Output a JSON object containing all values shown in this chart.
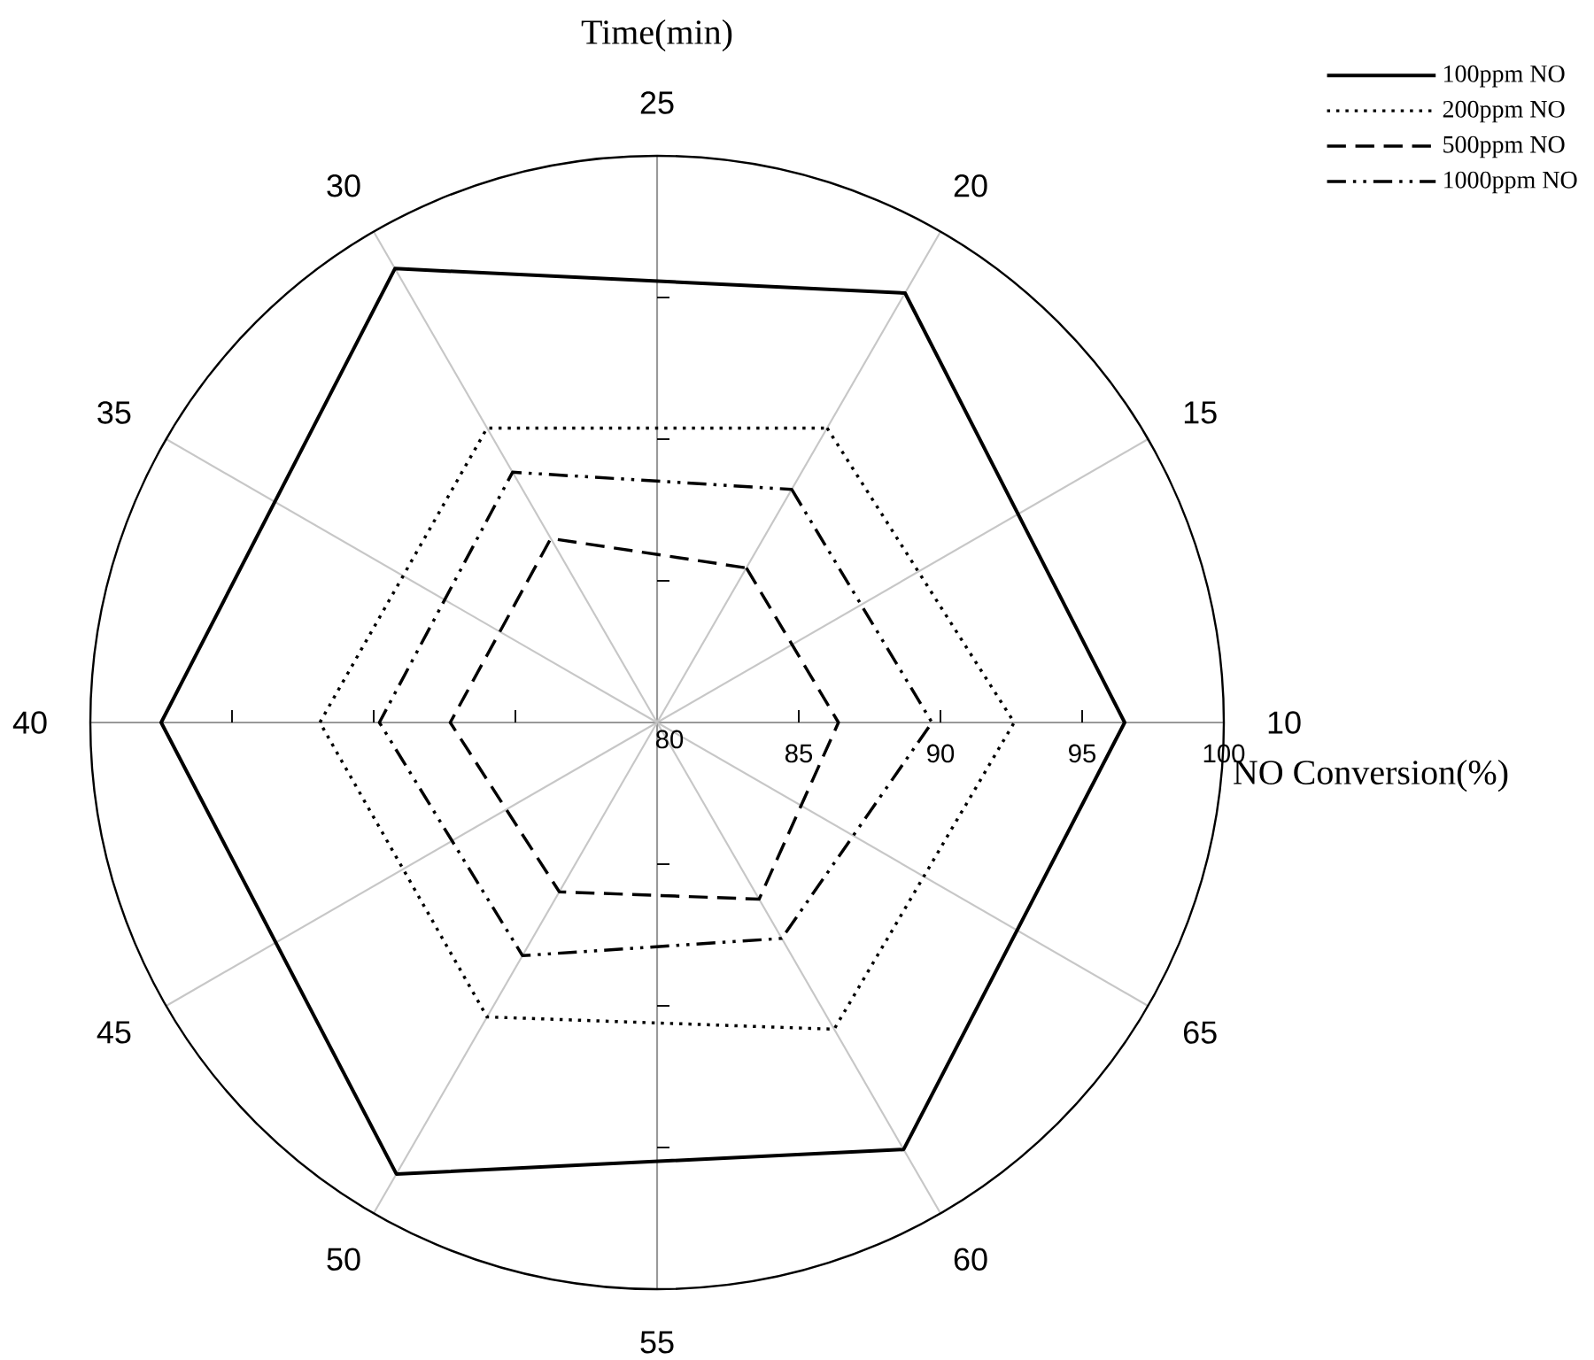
{
  "chart_data": {
    "type": "radar",
    "xlabel": "Time(min)",
    "ylabel": "NO Conversion(%)",
    "categories": [
      "25",
      "20",
      "15",
      "10",
      "65",
      "60",
      "55",
      "50",
      "45",
      "40",
      "35",
      "30"
    ],
    "series": [
      {
        "name": "100ppm NO",
        "color": "#000000",
        "line_style": "solid",
        "values": [
          null,
          97.5,
          null,
          96.5,
          null,
          97.4,
          null,
          98.4,
          null,
          97.5,
          null,
          98.5
        ]
      },
      {
        "name": "200ppm NO",
        "color": "#000000",
        "line_style": "dotted",
        "values": [
          null,
          92.0,
          null,
          92.6,
          null,
          92.5,
          null,
          92.0,
          null,
          91.9,
          null,
          92.0
        ]
      },
      {
        "name": "500ppm NO",
        "color": "#000000",
        "line_style": "dashed",
        "values": [
          null,
          86.3,
          null,
          86.4,
          null,
          87.2,
          null,
          86.9,
          null,
          87.3,
          null,
          87.5
        ]
      },
      {
        "name": "1000ppm NO",
        "color": "#000000",
        "line_style": "dashdot",
        "values": [
          null,
          89.5,
          null,
          89.7,
          null,
          88.8,
          null,
          89.5,
          null,
          89.8,
          null,
          90.2
        ]
      }
    ],
    "ylim": [
      80,
      100
    ],
    "yticks": [
      80,
      85,
      90,
      95,
      100
    ],
    "grid": true,
    "legend": "top right"
  }
}
